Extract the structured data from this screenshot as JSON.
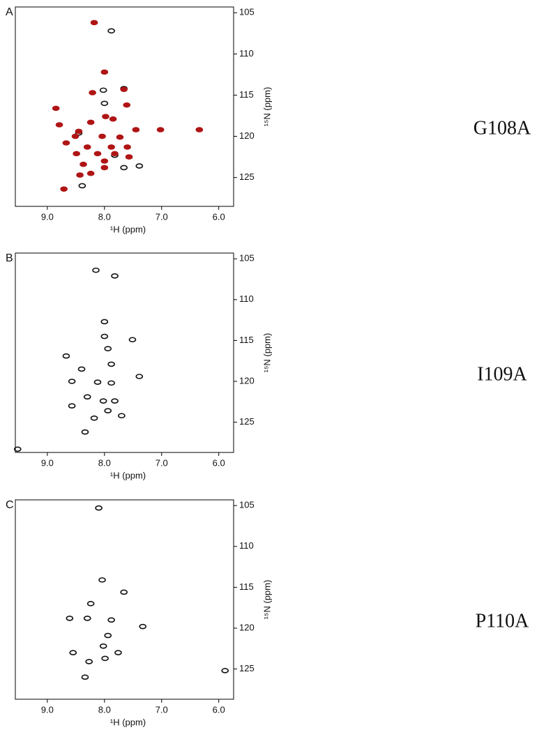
{
  "chart_data": [
    {
      "type": "scatter",
      "panel": "A",
      "title": "G108A",
      "x_label": "¹H (ppm)",
      "y_label": "¹⁵N (ppm)",
      "xlim": [
        9.56,
        5.74
      ],
      "ylim": [
        104.3,
        128.5
      ],
      "xticks": [
        {
          "value": 9,
          "label": "9.0"
        },
        {
          "value": 8,
          "label": "8.0"
        },
        {
          "value": 7,
          "label": "7.0"
        },
        {
          "value": 6,
          "label": "6.0"
        }
      ],
      "yticks": [
        105,
        110,
        115,
        120,
        125
      ],
      "series": [
        {
          "color": "#111111",
          "x": [
            7.88,
            8.02,
            7.66,
            7.39,
            7.66,
            8.39,
            8.0,
            8.45,
            7.82
          ],
          "y": [
            107.2,
            114.4,
            114.2,
            123.6,
            123.8,
            126.0,
            116.0,
            119.6,
            122.3
          ]
        },
        {
          "color": "#b01515",
          "x": [
            8.18,
            8.0,
            8.21,
            7.66,
            7.61,
            8.85,
            7.98,
            7.85,
            8.24,
            8.79,
            7.45,
            8.45,
            7.02,
            6.34,
            8.04,
            7.73,
            8.51,
            8.67,
            8.3,
            7.88,
            7.6,
            8.12,
            8.49,
            7.82,
            8.0,
            8.37,
            7.57,
            8.0,
            8.24,
            8.43,
            8.71
          ],
          "y": [
            106.2,
            112.2,
            114.7,
            114.3,
            116.2,
            116.6,
            117.6,
            117.9,
            118.3,
            118.6,
            119.2,
            119.4,
            119.2,
            119.2,
            120.0,
            120.1,
            120.0,
            120.8,
            121.3,
            121.3,
            121.3,
            122.1,
            122.1,
            122.1,
            123.0,
            123.4,
            122.5,
            123.8,
            124.5,
            124.7,
            126.4
          ]
        }
      ]
    },
    {
      "type": "scatter",
      "panel": "B",
      "title": "I109A",
      "x_label": "¹H (ppm)",
      "y_label": "¹⁵N (ppm)",
      "xlim": [
        9.56,
        5.74
      ],
      "ylim": [
        104.3,
        128.7
      ],
      "xticks": [
        {
          "value": 9,
          "label": "9.0"
        },
        {
          "value": 8,
          "label": "8.0"
        },
        {
          "value": 7,
          "label": "7.0"
        },
        {
          "value": 6,
          "label": "6.0"
        }
      ],
      "yticks": [
        105,
        110,
        115,
        120,
        125
      ],
      "series": [
        {
          "color": "#111111",
          "x": [
            8.15,
            7.82,
            8.0,
            8.0,
            7.51,
            8.67,
            7.94,
            7.88,
            7.39,
            8.4,
            8.57,
            8.12,
            7.88,
            8.02,
            8.3,
            7.82,
            8.57,
            7.94,
            7.7,
            8.18,
            8.34,
            9.52
          ],
          "y": [
            106.4,
            107.1,
            112.7,
            114.5,
            114.9,
            116.9,
            116.0,
            117.9,
            119.4,
            118.5,
            120.0,
            120.1,
            120.2,
            122.4,
            121.9,
            122.4,
            123.0,
            123.6,
            124.2,
            124.5,
            126.2,
            128.3
          ]
        }
      ]
    },
    {
      "type": "scatter",
      "panel": "C",
      "title": "P110A",
      "x_label": "¹H (ppm)",
      "y_label": "¹⁵N (ppm)",
      "xlim": [
        9.56,
        5.74
      ],
      "ylim": [
        104.3,
        128.7
      ],
      "xticks": [
        {
          "value": 9,
          "label": "9.0"
        },
        {
          "value": 8,
          "label": "8.0"
        },
        {
          "value": 7,
          "label": "7.0"
        },
        {
          "value": 6,
          "label": "6.0"
        }
      ],
      "yticks": [
        105,
        110,
        115,
        120,
        125
      ],
      "series": [
        {
          "color": "#111111",
          "x": [
            8.1,
            8.04,
            7.66,
            8.24,
            8.61,
            8.3,
            7.88,
            7.33,
            7.94,
            8.02,
            8.55,
            7.76,
            7.99,
            8.27,
            8.34,
            5.89
          ],
          "y": [
            105.3,
            114.1,
            115.6,
            117.0,
            118.8,
            118.8,
            119.0,
            119.8,
            120.9,
            122.2,
            123.0,
            123.0,
            123.7,
            124.1,
            126.0,
            125.2
          ]
        }
      ]
    }
  ]
}
